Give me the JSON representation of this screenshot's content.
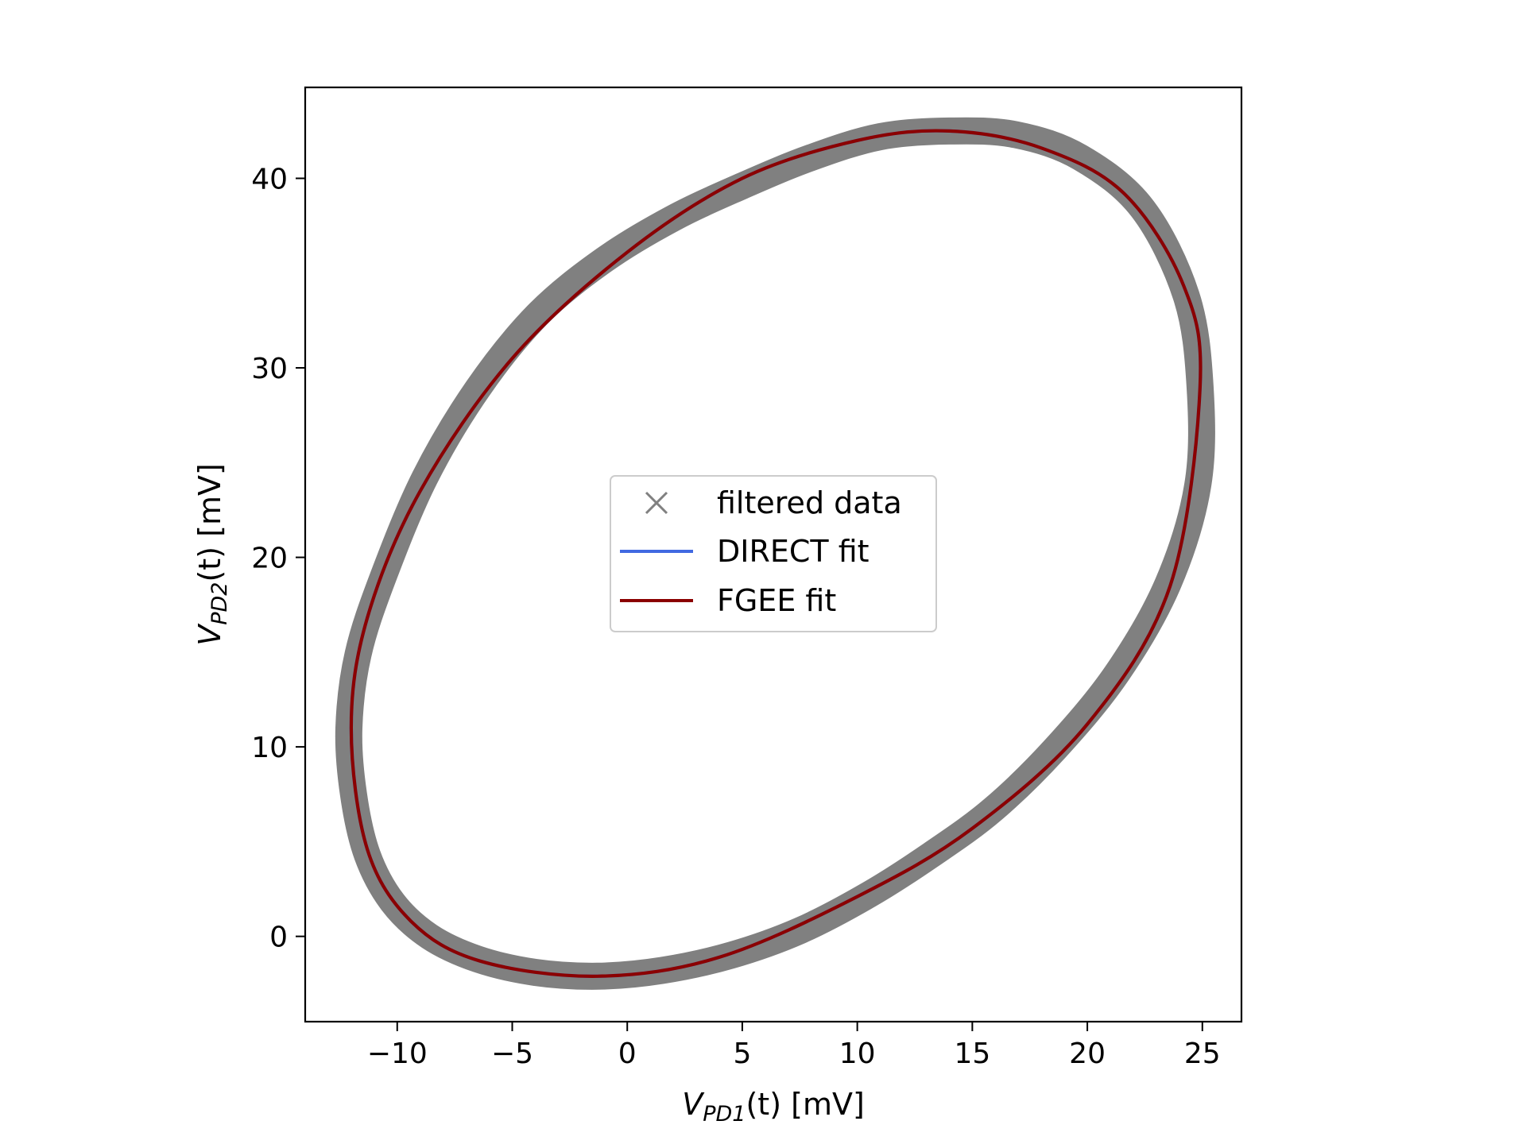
{
  "chart_data": {
    "type": "scatter",
    "xlabel": {
      "main": "V",
      "sub": "PD1",
      "rest": "(t) [mV]"
    },
    "ylabel": {
      "main": "V",
      "sub": "PD2",
      "rest": "(t) [mV]"
    },
    "xlim": [
      -14,
      26.7
    ],
    "ylim": [
      -4.5,
      44.8
    ],
    "xticks": [
      -10,
      -5,
      0,
      5,
      10,
      15,
      20,
      25
    ],
    "xtick_labels": [
      "−10",
      "−5",
      "0",
      "5",
      "10",
      "15",
      "20",
      "25"
    ],
    "yticks": [
      0,
      10,
      20,
      30,
      40
    ],
    "ytick_labels": [
      "0",
      "10",
      "20",
      "30",
      "40"
    ],
    "grid": false,
    "legend_position": "center",
    "legend": [
      {
        "label": "filtered data",
        "marker": "x",
        "color": "#808080"
      },
      {
        "label": "DIRECT fit",
        "marker": "line",
        "color": "#4169e1"
      },
      {
        "label": "FGEE fit",
        "marker": "line",
        "color": "#8b0000"
      }
    ],
    "series": [
      {
        "name": "filtered data",
        "kind": "points",
        "color": "#808080",
        "x": [
          -12.1,
          -11.9,
          -11.3,
          -10.2,
          -8.6,
          -6.5,
          -4.0,
          -1.3,
          1.5,
          4.5,
          7.5,
          10.5,
          13.2,
          15.9,
          18.6,
          21.3,
          23.5,
          24.8,
          24.9,
          24.3,
          22.4,
          19.7,
          16.9,
          14.0,
          11.0,
          8.0,
          5.0,
          2.0,
          -1.0,
          -3.9,
          -6.5,
          -8.8,
          -10.6,
          -11.7
        ],
        "y": [
          11.0,
          7.5,
          4.3,
          1.8,
          0.0,
          -1.2,
          -1.9,
          -2.1,
          -1.8,
          -1.0,
          0.3,
          2.2,
          4.3,
          6.7,
          9.9,
          13.9,
          18.6,
          23.8,
          29.0,
          33.8,
          38.4,
          41.1,
          42.3,
          42.5,
          42.2,
          41.1,
          39.6,
          37.9,
          35.7,
          32.8,
          28.9,
          24.2,
          19.0,
          14.9
        ]
      },
      {
        "name": "DIRECT fit",
        "kind": "ellipse",
        "color": "#4169e1",
        "x": [
          -12.0,
          -11.3,
          -9.4,
          -6.4,
          -1.3,
          4.0,
          10.0,
          15.0,
          20.0,
          23.6,
          24.9,
          24.2,
          21.6,
          18.0,
          14.0,
          10.0,
          5.0,
          0.0,
          -5.0,
          -9.0,
          -11.3
        ],
        "y": [
          11.0,
          4.6,
          0.8,
          -1.3,
          -2.1,
          -1.1,
          2.1,
          5.7,
          11.2,
          18.5,
          29.0,
          34.3,
          39.2,
          41.6,
          42.5,
          42.0,
          40.0,
          36.1,
          30.5,
          23.5,
          16.8
        ]
      },
      {
        "name": "FGEE fit",
        "kind": "ellipse",
        "color": "#8b0000",
        "x": [
          -12.0,
          -11.3,
          -9.4,
          -6.4,
          -1.3,
          4.0,
          10.0,
          15.0,
          20.0,
          23.6,
          24.9,
          24.2,
          21.6,
          18.0,
          14.0,
          10.0,
          5.0,
          0.0,
          -5.0,
          -9.0,
          -11.3
        ],
        "y": [
          11.0,
          4.6,
          0.8,
          -1.3,
          -2.1,
          -1.1,
          2.1,
          5.7,
          11.2,
          18.5,
          29.0,
          34.3,
          39.2,
          41.6,
          42.5,
          42.0,
          40.0,
          36.1,
          30.5,
          23.5,
          16.8
        ]
      }
    ]
  }
}
